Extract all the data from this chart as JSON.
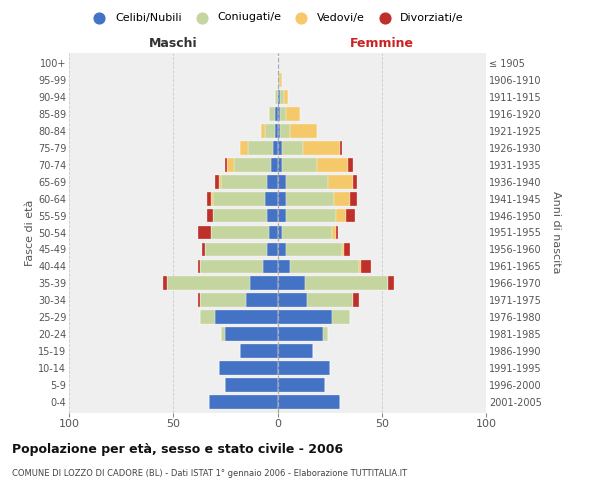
{
  "age_groups": [
    "0-4",
    "5-9",
    "10-14",
    "15-19",
    "20-24",
    "25-29",
    "30-34",
    "35-39",
    "40-44",
    "45-49",
    "50-54",
    "55-59",
    "60-64",
    "65-69",
    "70-74",
    "75-79",
    "80-84",
    "85-89",
    "90-94",
    "95-99",
    "100+"
  ],
  "birth_years": [
    "2001-2005",
    "1996-2000",
    "1991-1995",
    "1986-1990",
    "1981-1985",
    "1976-1980",
    "1971-1975",
    "1966-1970",
    "1961-1965",
    "1956-1960",
    "1951-1955",
    "1946-1950",
    "1941-1945",
    "1936-1940",
    "1931-1935",
    "1926-1930",
    "1921-1925",
    "1916-1920",
    "1911-1915",
    "1906-1910",
    "≤ 1905"
  ],
  "males": {
    "celibi": [
      33,
      25,
      28,
      18,
      25,
      30,
      15,
      13,
      7,
      5,
      4,
      5,
      6,
      5,
      3,
      2,
      1,
      1,
      0,
      0,
      0
    ],
    "coniugati": [
      0,
      0,
      0,
      0,
      2,
      7,
      22,
      40,
      30,
      30,
      28,
      26,
      25,
      22,
      18,
      12,
      5,
      3,
      1,
      0,
      0
    ],
    "vedovi": [
      0,
      0,
      0,
      0,
      0,
      0,
      0,
      0,
      0,
      0,
      0,
      0,
      1,
      1,
      3,
      4,
      2,
      0,
      0,
      0,
      0
    ],
    "divorziati": [
      0,
      0,
      0,
      0,
      0,
      0,
      1,
      2,
      1,
      1,
      6,
      3,
      2,
      2,
      1,
      0,
      0,
      0,
      0,
      0,
      0
    ]
  },
  "females": {
    "nubili": [
      30,
      23,
      25,
      17,
      22,
      26,
      14,
      13,
      6,
      4,
      2,
      4,
      4,
      4,
      2,
      2,
      1,
      1,
      1,
      0,
      0
    ],
    "coniugate": [
      0,
      0,
      0,
      0,
      2,
      9,
      22,
      40,
      33,
      27,
      24,
      24,
      23,
      20,
      17,
      10,
      5,
      3,
      2,
      1,
      0
    ],
    "vedove": [
      0,
      0,
      0,
      0,
      0,
      0,
      0,
      0,
      1,
      1,
      2,
      5,
      8,
      12,
      15,
      18,
      13,
      7,
      2,
      1,
      0
    ],
    "divorziate": [
      0,
      0,
      0,
      0,
      0,
      0,
      3,
      3,
      5,
      3,
      1,
      4,
      3,
      2,
      2,
      1,
      0,
      0,
      0,
      0,
      0
    ]
  },
  "colors": {
    "celibi": "#4472C4",
    "coniugati": "#C5D5A0",
    "vedovi": "#F5C96A",
    "divorziati": "#C0302A"
  },
  "title": "Popolazione per età, sesso e stato civile - 2006",
  "subtitle": "COMUNE DI LOZZO DI CADORE (BL) - Dati ISTAT 1° gennaio 2006 - Elaborazione TUTTITALIA.IT",
  "legend_labels": [
    "Celibi/Nubili",
    "Coniugati/e",
    "Vedovi/e",
    "Divorziati/e"
  ],
  "xlabel_left": "Maschi",
  "xlabel_right": "Femmine",
  "ylabel_left": "Fasce di età",
  "ylabel_right": "Anni di nascita",
  "xlim": 100,
  "xticks": [
    -100,
    -50,
    0,
    50,
    100
  ],
  "xtick_labels": [
    "100",
    "50",
    "0",
    "50",
    "100"
  ],
  "bg_color": "#efefef",
  "grid_color": "#cccccc",
  "bar_height": 0.82
}
